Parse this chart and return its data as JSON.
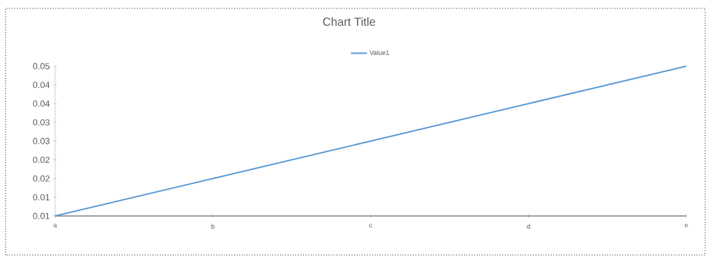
{
  "chart_data": {
    "type": "line",
    "title": "Chart Title",
    "categories": [
      "a",
      "b",
      "c",
      "d",
      "e"
    ],
    "series": [
      {
        "name": "Value1",
        "color": "#5b9bd5",
        "values": [
          0.01,
          0.02,
          0.03,
          0.04,
          0.05
        ]
      }
    ],
    "ylim": [
      0.01,
      0.05
    ],
    "yticks": [
      0.01,
      {
        "value": 0.015,
        "label": "0.01"
      },
      0.02,
      {
        "value": 0.025,
        "label": "0.02"
      },
      0.03,
      {
        "value": 0.035,
        "label": "0.03"
      },
      0.04,
      {
        "value": 0.045,
        "label": "0.04"
      },
      0.05
    ],
    "legend": "top",
    "grid": false,
    "marker": "none",
    "line_style": "solid"
  }
}
